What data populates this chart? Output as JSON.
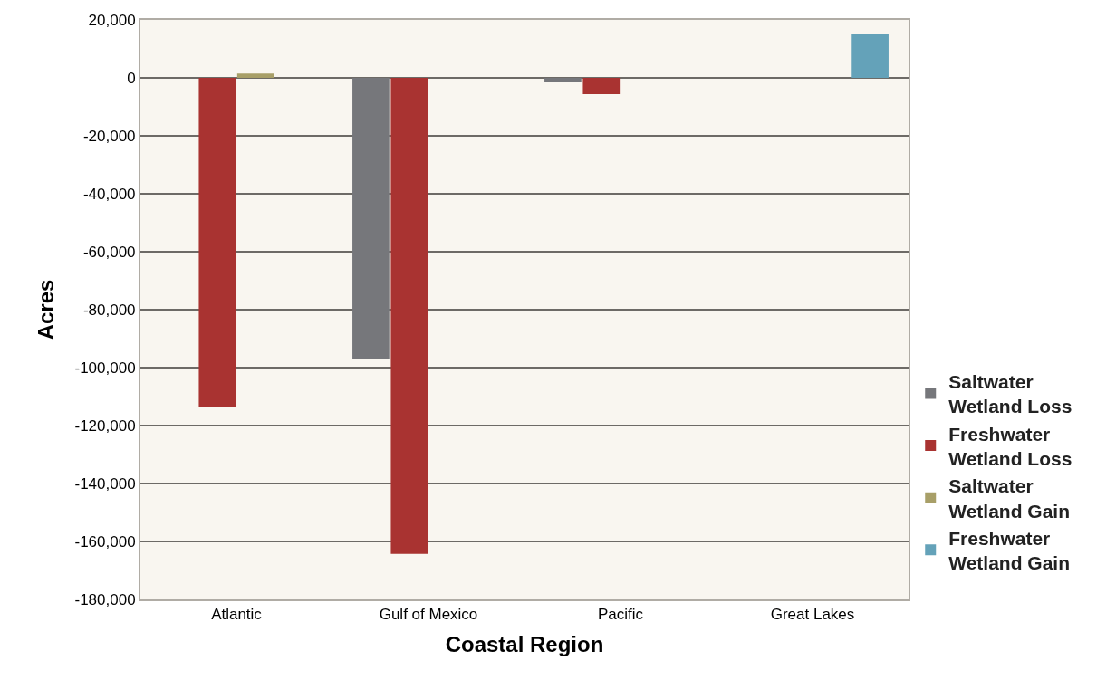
{
  "chart_data": {
    "type": "bar",
    "xlabel": "Coastal Region",
    "ylabel": "Acres",
    "categories": [
      "Atlantic",
      "Gulf of Mexico",
      "Pacific",
      "Great Lakes"
    ],
    "series": [
      {
        "name": "Saltwater\nWetland Loss",
        "color": "#76777b",
        "values": [
          null,
          -97000,
          -1600,
          null
        ]
      },
      {
        "name": "Freshwater\nWetland Loss",
        "color": "#a93331",
        "values": [
          -113600,
          -164300,
          -5600,
          null
        ]
      },
      {
        "name": "Saltwater\nWetland Gain",
        "color": "#a89f68",
        "values": [
          1500,
          null,
          null,
          null
        ]
      },
      {
        "name": "Freshwater\nWetland Gain",
        "color": "#64a2b9",
        "values": [
          null,
          null,
          null,
          15300
        ]
      }
    ],
    "ylim": [
      -180000,
      20000
    ],
    "yticks": [
      {
        "value": 20000,
        "label": "20,000"
      },
      {
        "value": 0,
        "label": "0"
      },
      {
        "value": -20000,
        "label": "-20,000"
      },
      {
        "value": -40000,
        "label": "-40,000"
      },
      {
        "value": -60000,
        "label": "-60,000"
      },
      {
        "value": -80000,
        "label": "-80,000"
      },
      {
        "value": -100000,
        "label": "-100,000"
      },
      {
        "value": -120000,
        "label": "-120,000"
      },
      {
        "value": -140000,
        "label": "-140,000"
      },
      {
        "value": -160000,
        "label": "-160,000"
      },
      {
        "value": -180000,
        "label": "-180,000"
      }
    ],
    "grid": "y",
    "legend": "right"
  }
}
